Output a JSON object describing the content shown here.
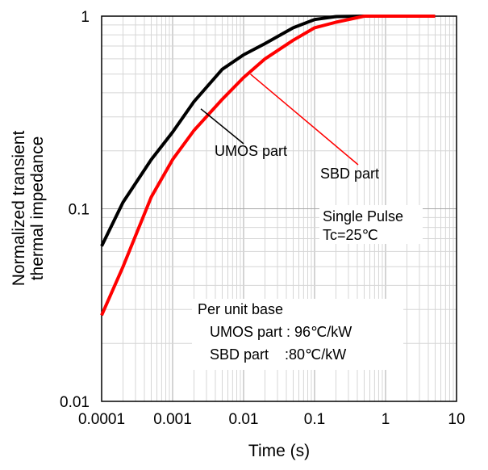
{
  "chart_data": {
    "type": "line",
    "title": "",
    "xlabel": "Time (s)",
    "ylabel_lines": [
      "Normalized transient",
      "thermal impedance"
    ],
    "xscale": "log",
    "yscale": "log",
    "xlim": [
      0.0001,
      10
    ],
    "ylim": [
      0.01,
      1
    ],
    "grid": true,
    "x_tick_labels": [
      "0.0001",
      "0.001",
      "0.01",
      "0.1",
      "1",
      "10"
    ],
    "y_tick_labels": [
      "0.01",
      "0.1",
      "1"
    ],
    "series": [
      {
        "name": "UMOS part",
        "color": "#000000",
        "x": [
          0.0001,
          0.0002,
          0.0005,
          0.001,
          0.002,
          0.005,
          0.01,
          0.02,
          0.05,
          0.1,
          0.2,
          0.5,
          1,
          2,
          5
        ],
        "y": [
          0.064,
          0.108,
          0.18,
          0.25,
          0.36,
          0.53,
          0.63,
          0.72,
          0.87,
          0.96,
          0.995,
          1.0,
          1.0,
          1.0,
          1.0
        ]
      },
      {
        "name": "SBD part",
        "color": "#ff0000",
        "x": [
          0.0001,
          0.0002,
          0.0005,
          0.001,
          0.002,
          0.005,
          0.01,
          0.02,
          0.05,
          0.1,
          0.2,
          0.5,
          1,
          2,
          5
        ],
        "y": [
          0.028,
          0.05,
          0.115,
          0.18,
          0.255,
          0.37,
          0.48,
          0.6,
          0.75,
          0.87,
          0.93,
          1.0,
          1.0,
          1.0,
          1.0
        ]
      }
    ],
    "annotations": {
      "umos_label": "UMOS part",
      "sbd_label": "SBD part",
      "pulse_line1": "Single Pulse",
      "pulse_line2": "Tc=25℃",
      "base_title": "Per unit base",
      "base_umos": "UMOS part : 96℃/kW",
      "base_sbd": "SBD part    :80℃/kW"
    }
  }
}
